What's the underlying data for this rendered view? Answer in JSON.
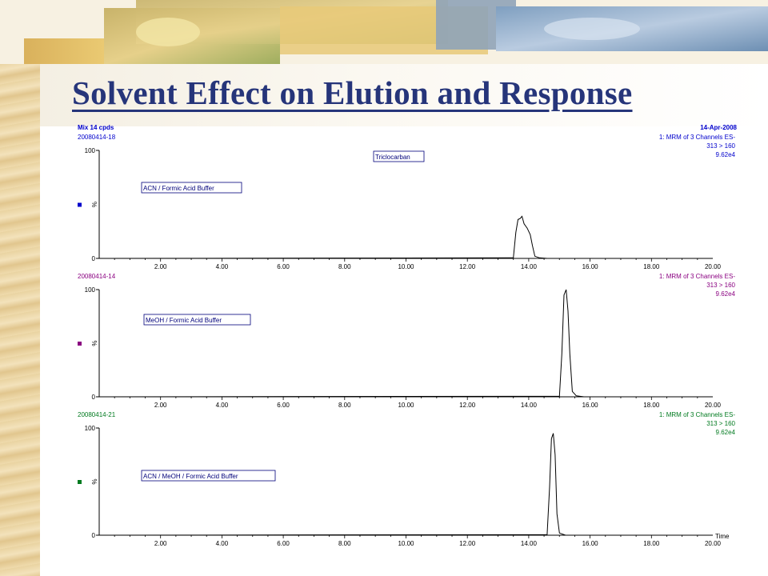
{
  "title": "Solvent Effect on Elution and Response",
  "colors": {
    "title": "#26357a",
    "blue": "#0000cc",
    "purple": "#8a0080",
    "green": "#007a1f",
    "trace": "#000000"
  },
  "header": {
    "left": "Mix 14 cpds",
    "right": "14-Apr-2008"
  },
  "compound_label": "Triclocarban",
  "x_axis_title": "Time",
  "y_axis_symbol": "%",
  "chart_data": [
    {
      "type": "line",
      "sample_id": "20080414-18",
      "channel": "1: MRM of 3 Channels ES-",
      "transition": "313 > 160",
      "intensity": "9.62e4",
      "label": "ACN / Formic Acid Buffer",
      "x_ticks": [
        "2.00",
        "4.00",
        "6.00",
        "8.00",
        "10.00",
        "12.00",
        "14.00",
        "16.00",
        "18.00",
        "20.00"
      ],
      "y_ticks": [
        "0",
        "100"
      ],
      "xlim": [
        0,
        20
      ],
      "ylim": [
        0,
        100
      ],
      "x": [
        0,
        13.5,
        13.58,
        13.65,
        13.72,
        13.78,
        13.85,
        13.95,
        14.05,
        14.12,
        14.2,
        14.35,
        14.6,
        20
      ],
      "y": [
        0,
        0.5,
        24,
        36,
        37,
        39,
        32,
        28,
        22,
        12,
        2,
        0.5,
        0,
        0
      ]
    },
    {
      "type": "line",
      "sample_id": "20080414-14",
      "channel": "1: MRM of 3 Channels ES-",
      "transition": "313 > 160",
      "intensity": "9.62e4",
      "label": "MeOH / Formic Acid Buffer",
      "x_ticks": [
        "2.00",
        "4.00",
        "6.00",
        "8.00",
        "10.00",
        "12.00",
        "14.00",
        "16.00",
        "18.00",
        "20.00"
      ],
      "y_ticks": [
        "0",
        "100"
      ],
      "xlim": [
        0,
        20
      ],
      "ylim": [
        0,
        100
      ],
      "x": [
        0,
        15.0,
        15.08,
        15.15,
        15.22,
        15.28,
        15.34,
        15.42,
        15.55,
        15.8,
        20
      ],
      "y": [
        0,
        0.5,
        40,
        95,
        100,
        80,
        40,
        5,
        1,
        0,
        0
      ]
    },
    {
      "type": "line",
      "sample_id": "20080414-21",
      "channel": "1: MRM of 3 Channels ES-",
      "transition": "313 > 160",
      "intensity": "9.62e4",
      "label": "ACN / MeOH / Formic Acid Buffer",
      "x_ticks": [
        "2.00",
        "4.00",
        "6.00",
        "8.00",
        "10.00",
        "12.00",
        "14.00",
        "16.00",
        "18.00",
        "20.00"
      ],
      "y_ticks": [
        "0",
        "100"
      ],
      "xlim": [
        0,
        20
      ],
      "ylim": [
        0,
        100
      ],
      "x": [
        0,
        14.6,
        14.68,
        14.74,
        14.8,
        14.86,
        14.92,
        15.0,
        15.2,
        20
      ],
      "y": [
        0,
        0.5,
        45,
        90,
        95,
        75,
        20,
        2,
        0,
        0
      ]
    }
  ]
}
